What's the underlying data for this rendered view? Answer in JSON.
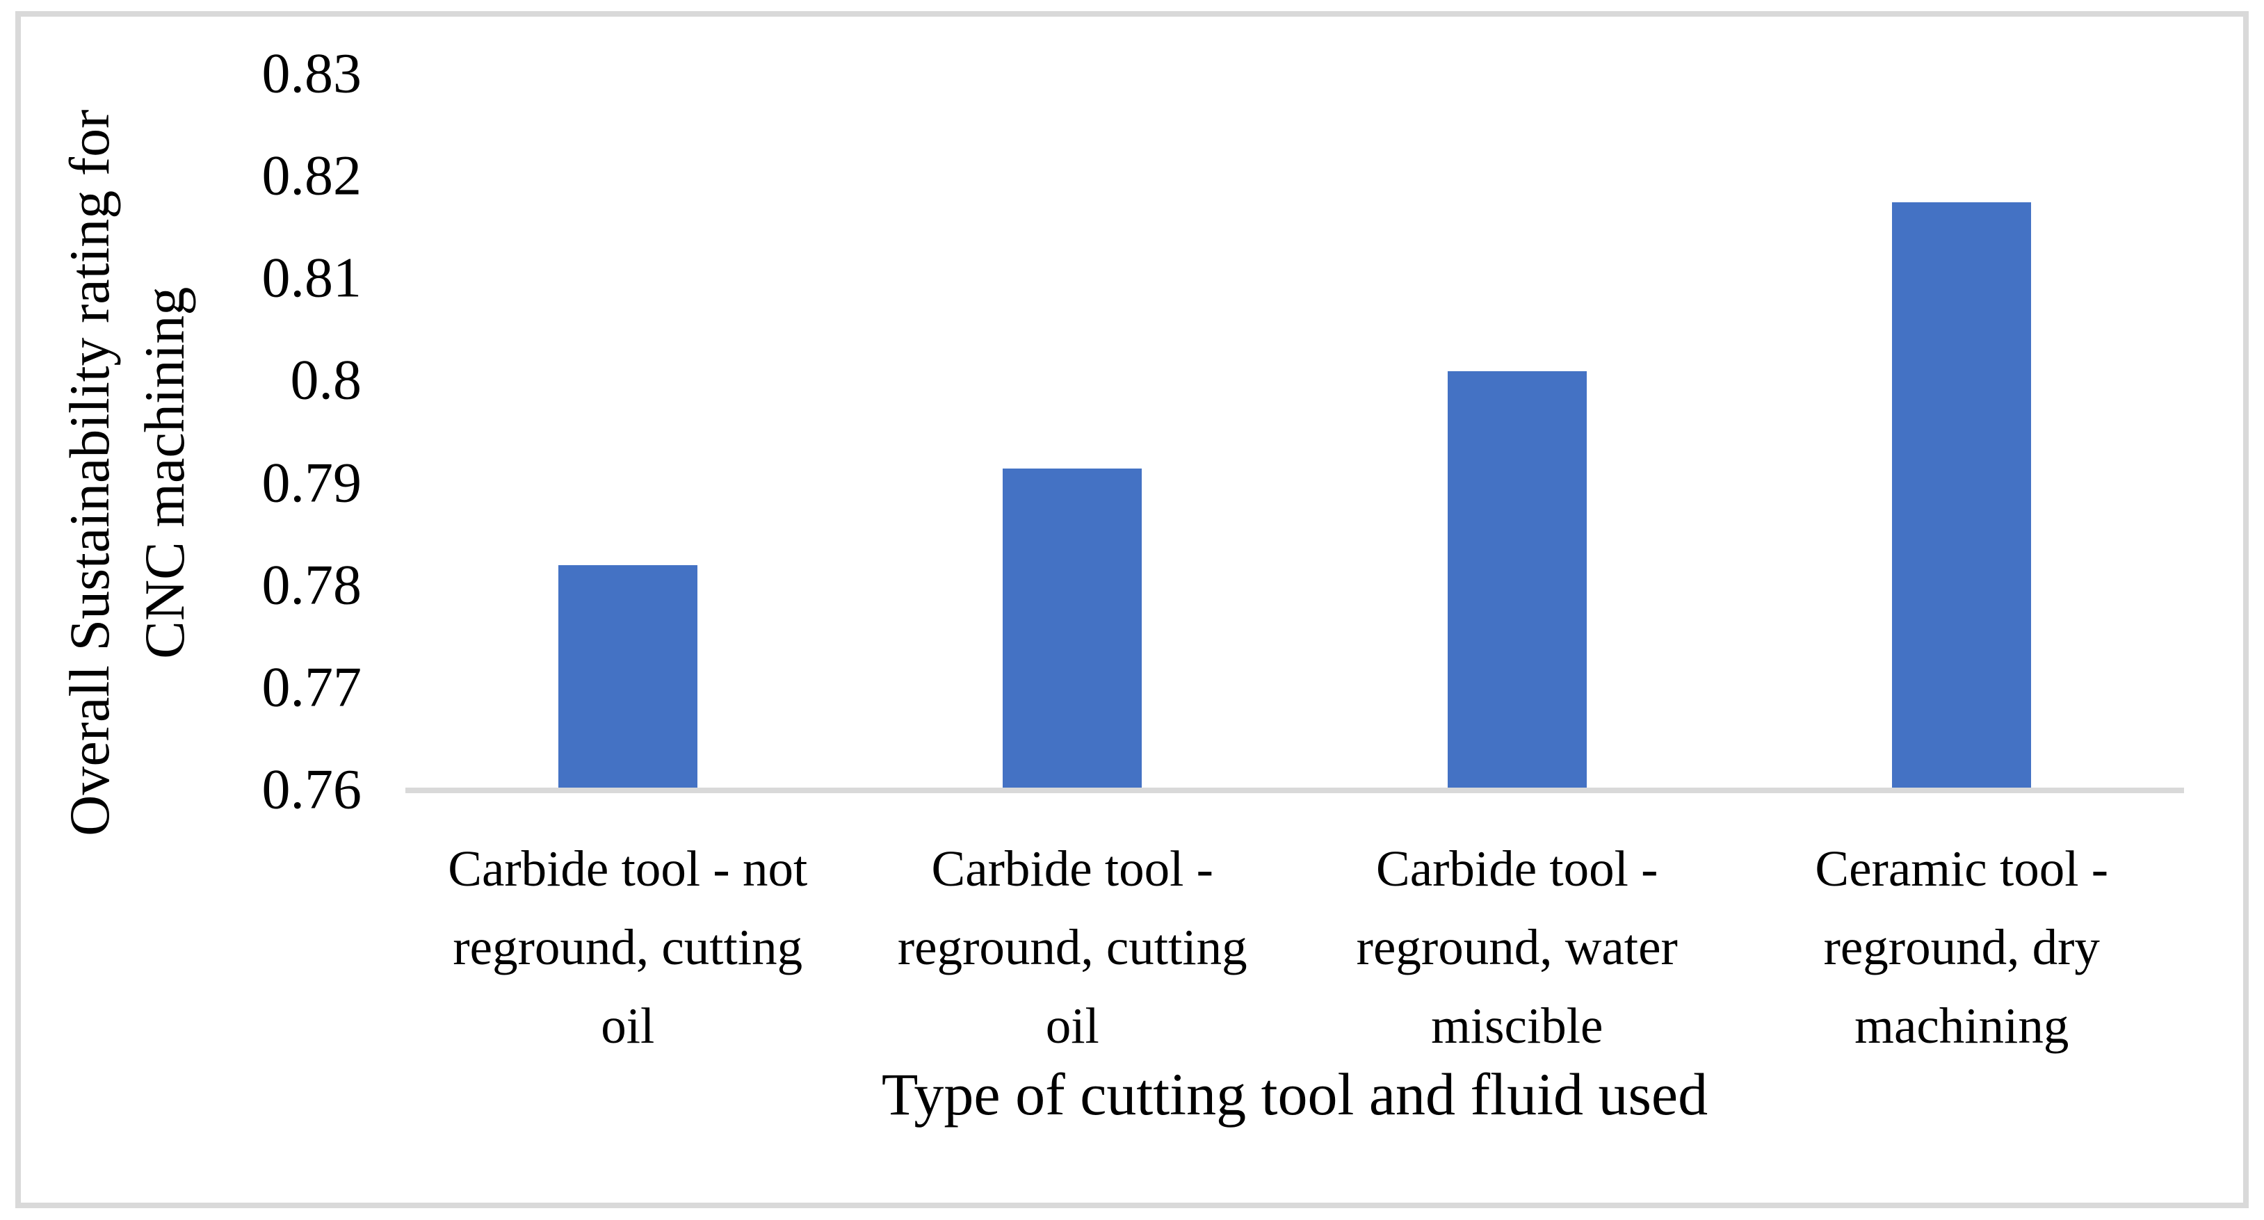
{
  "chart_data": {
    "type": "bar",
    "title": "",
    "xlabel": "Type of cutting tool and fluid used",
    "ylabel": "Overall Sustainability rating for CNC machining",
    "ylabel_lines": "Overall Sustainability rating for\nCNC machining",
    "categories": [
      "Carbide tool - not reground, cutting oil",
      "Carbide tool - reground, cutting oil",
      "Carbide tool - reground, water miscible",
      "Ceramic tool - reground, dry machining"
    ],
    "category_label_lines": [
      "Carbide tool - not\nreground, cutting\noil",
      "Carbide tool -\nreground, cutting\noil",
      "Carbide tool -\nreground, water\nmiscible",
      "Ceramic tool -\nreground, dry\nmachining"
    ],
    "values": [
      0.782,
      0.7915,
      0.801,
      0.8175
    ],
    "ylim": [
      0.76,
      0.83
    ],
    "ytick_values": [
      0.76,
      0.77,
      0.78,
      0.79,
      0.8,
      0.81,
      0.82,
      0.83
    ],
    "ytick_labels": [
      "0.76",
      "0.77",
      "0.78",
      "0.79",
      "0.8",
      "0.81",
      "0.82",
      "0.83"
    ],
    "grid": false,
    "legend": null,
    "bar_color": "#4472C4",
    "axis_line_color": "#D9D9D9",
    "frame_border_color": "#D9D9D9",
    "text_color": "#000000"
  }
}
